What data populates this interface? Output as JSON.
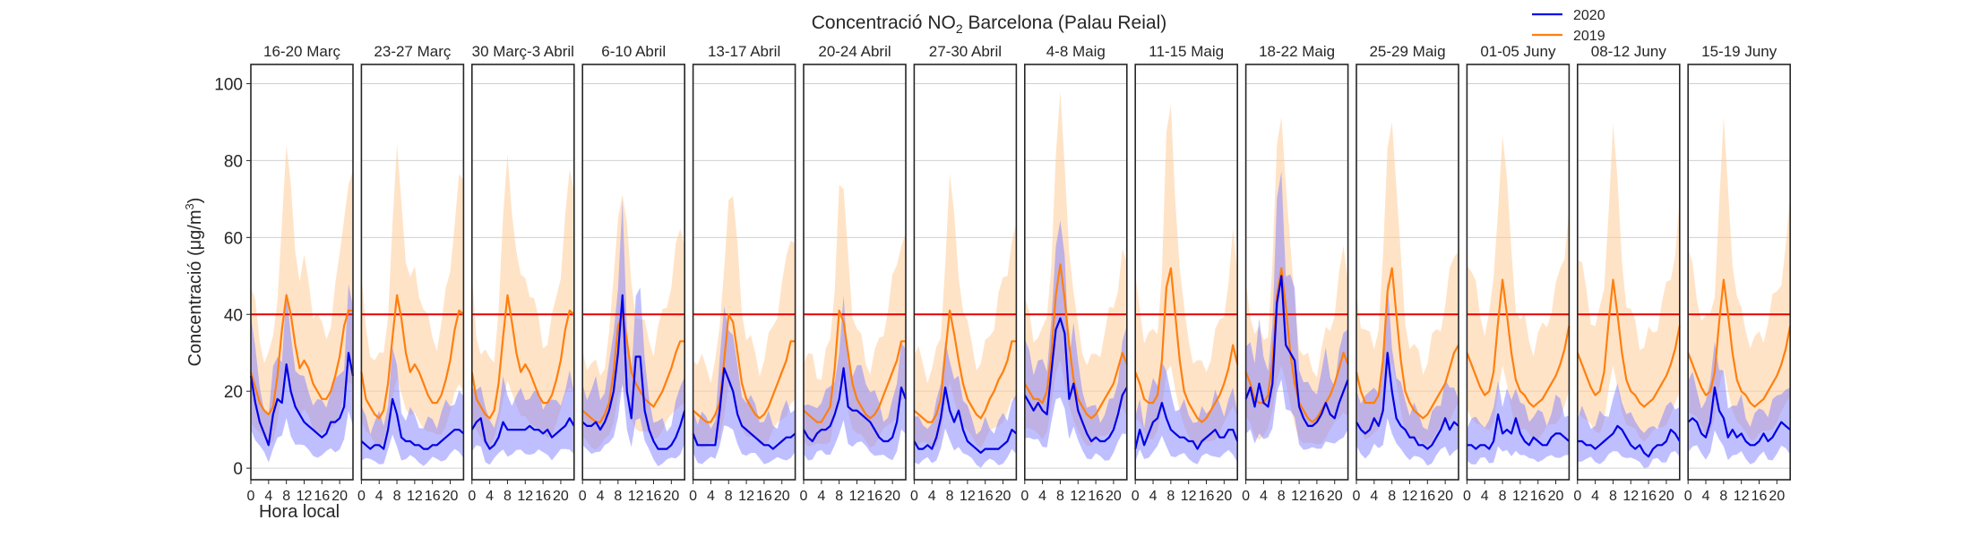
{
  "chart_data": {
    "type": "line",
    "title_main": "Concentració NO",
    "title_sub": "2",
    "title_tail": " Barcelona (Palau Reial)",
    "ylabel_main": "Concentració (μg/m",
    "ylabel_sup": "3",
    "ylabel_tail": ")",
    "xlabel": "Hora local",
    "ylim": [
      -3,
      105
    ],
    "yticks": [
      "0",
      "20",
      "40",
      "60",
      "80",
      "100"
    ],
    "ytick_values": [
      0,
      20,
      40,
      60,
      80,
      100
    ],
    "xticks": [
      "0",
      "4",
      "8",
      "12",
      "16",
      "20"
    ],
    "xtick_values": [
      0,
      4,
      8,
      12,
      16,
      20
    ],
    "xlim": [
      0,
      23
    ],
    "threshold": 40,
    "grid": true,
    "legend_position": "top-right",
    "legend": [
      {
        "name": "2020",
        "color": "#0000e6"
      },
      {
        "name": "2019",
        "color": "#ff7f0e"
      }
    ],
    "panels": [
      {
        "label": "16-20 Març",
        "s2020": [
          24,
          17,
          12,
          9,
          6,
          14,
          18,
          17,
          27,
          20,
          16,
          14,
          12,
          11,
          10,
          9,
          8,
          9,
          12,
          12,
          13,
          16,
          30,
          24
        ],
        "s2019": [
          25,
          21,
          17,
          15,
          14,
          16,
          24,
          36,
          45,
          40,
          32,
          26,
          28,
          26,
          22,
          20,
          18,
          18,
          20,
          24,
          29,
          37,
          41,
          41
        ]
      },
      {
        "label": "23-27 Març",
        "s2020": [
          7,
          6,
          5,
          6,
          6,
          5,
          10,
          18,
          14,
          8,
          7,
          7,
          6,
          6,
          5,
          5,
          6,
          6,
          7,
          8,
          9,
          10,
          10,
          9
        ],
        "s2019": [
          25,
          18,
          16,
          14,
          13,
          15,
          22,
          34,
          45,
          39,
          30,
          25,
          27,
          25,
          22,
          19,
          17,
          17,
          19,
          23,
          28,
          36,
          41,
          40
        ]
      },
      {
        "label": "30 Març-3 Abril",
        "s2020": [
          10,
          12,
          13,
          7,
          5,
          6,
          8,
          12,
          10,
          10,
          10,
          10,
          10,
          11,
          10,
          10,
          9,
          10,
          8,
          9,
          10,
          11,
          13,
          11
        ],
        "s2019": [
          25,
          18,
          16,
          14,
          13,
          15,
          22,
          34,
          45,
          38,
          30,
          25,
          27,
          25,
          22,
          19,
          17,
          17,
          19,
          23,
          28,
          36,
          41,
          40
        ]
      },
      {
        "label": "6-10 Abril",
        "s2020": [
          12,
          11,
          11,
          12,
          10,
          12,
          15,
          20,
          30,
          45,
          20,
          13,
          29,
          29,
          15,
          10,
          7,
          5,
          5,
          5,
          6,
          8,
          11,
          15
        ],
        "s2019": [
          15,
          14,
          13,
          12,
          12,
          14,
          17,
          25,
          37,
          40,
          33,
          25,
          22,
          20,
          18,
          17,
          16,
          18,
          20,
          23,
          26,
          30,
          33,
          33
        ]
      },
      {
        "label": "13-17 Abril",
        "s2020": [
          9,
          6,
          6,
          6,
          6,
          6,
          15,
          26,
          23,
          20,
          14,
          11,
          10,
          9,
          8,
          7,
          6,
          6,
          5,
          6,
          7,
          8,
          8,
          9
        ],
        "s2019": [
          15,
          14,
          13,
          12,
          12,
          14,
          17,
          28,
          40,
          38,
          30,
          22,
          18,
          16,
          14,
          13,
          14,
          16,
          19,
          22,
          25,
          28,
          33,
          33
        ]
      },
      {
        "label": "20-24 Abril",
        "s2020": [
          10,
          8,
          7,
          9,
          10,
          10,
          11,
          14,
          18,
          26,
          16,
          15,
          15,
          14,
          13,
          12,
          10,
          8,
          7,
          7,
          8,
          12,
          21,
          18
        ],
        "s2019": [
          15,
          14,
          13,
          12,
          12,
          14,
          16,
          26,
          41,
          38,
          30,
          22,
          18,
          16,
          14,
          13,
          14,
          16,
          19,
          22,
          25,
          28,
          33,
          33
        ]
      },
      {
        "label": "27-30 Abril",
        "s2020": [
          7,
          5,
          5,
          6,
          5,
          8,
          13,
          21,
          15,
          12,
          15,
          10,
          7,
          6,
          5,
          4,
          5,
          5,
          5,
          5,
          6,
          7,
          10,
          9
        ],
        "s2019": [
          15,
          14,
          13,
          12,
          12,
          14,
          18,
          30,
          41,
          35,
          28,
          22,
          18,
          16,
          14,
          13,
          15,
          18,
          20,
          23,
          25,
          28,
          33,
          33
        ]
      },
      {
        "label": "4-8 Maig",
        "s2020": [
          19,
          17,
          15,
          17,
          15,
          14,
          25,
          36,
          39,
          35,
          18,
          22,
          15,
          12,
          9,
          7,
          8,
          7,
          7,
          8,
          10,
          14,
          19,
          21
        ],
        "s2019": [
          22,
          20,
          18,
          18,
          17,
          20,
          30,
          45,
          53,
          44,
          32,
          23,
          18,
          16,
          14,
          13,
          14,
          16,
          18,
          20,
          22,
          26,
          30,
          27
        ]
      },
      {
        "label": "11-15 Maig",
        "s2020": [
          5,
          10,
          6,
          9,
          12,
          13,
          17,
          13,
          10,
          9,
          8,
          8,
          7,
          7,
          5,
          7,
          8,
          9,
          10,
          8,
          8,
          10,
          10,
          7
        ],
        "s2019": [
          25,
          22,
          18,
          17,
          17,
          19,
          28,
          47,
          52,
          40,
          28,
          20,
          17,
          15,
          13,
          12,
          13,
          15,
          17,
          19,
          22,
          26,
          32,
          27
        ]
      },
      {
        "label": "18-22 Maig",
        "s2020": [
          18,
          21,
          16,
          22,
          17,
          16,
          22,
          43,
          50,
          32,
          30,
          28,
          16,
          13,
          11,
          11,
          12,
          14,
          17,
          14,
          13,
          17,
          20,
          23
        ],
        "s2019": [
          25,
          22,
          18,
          17,
          17,
          19,
          28,
          45,
          52,
          42,
          30,
          22,
          17,
          15,
          13,
          12,
          13,
          15,
          17,
          19,
          22,
          26,
          30,
          27
        ]
      },
      {
        "label": "25-29 Maig",
        "s2020": [
          12,
          10,
          9,
          10,
          13,
          11,
          15,
          30,
          20,
          13,
          11,
          10,
          8,
          8,
          6,
          6,
          5,
          6,
          8,
          10,
          13,
          10,
          12,
          11
        ],
        "s2019": [
          25,
          20,
          17,
          17,
          17,
          19,
          28,
          46,
          52,
          40,
          28,
          20,
          17,
          15,
          14,
          13,
          14,
          16,
          18,
          20,
          22,
          26,
          30,
          32
        ]
      },
      {
        "label": "01-05 Juny",
        "s2020": [
          6,
          6,
          5,
          6,
          6,
          5,
          7,
          14,
          9,
          10,
          9,
          13,
          9,
          7,
          6,
          8,
          7,
          6,
          6,
          8,
          9,
          9,
          8,
          7
        ],
        "s2019": [
          30,
          27,
          24,
          21,
          19,
          20,
          25,
          38,
          49,
          40,
          30,
          23,
          20,
          19,
          17,
          16,
          17,
          18,
          20,
          22,
          24,
          27,
          31,
          37
        ]
      },
      {
        "label": "08-12 Juny",
        "s2020": [
          7,
          7,
          6,
          6,
          5,
          6,
          7,
          8,
          9,
          11,
          10,
          8,
          6,
          5,
          6,
          4,
          3,
          5,
          6,
          6,
          7,
          10,
          9,
          7
        ],
        "s2019": [
          30,
          27,
          24,
          21,
          19,
          20,
          25,
          38,
          49,
          40,
          30,
          23,
          20,
          19,
          17,
          16,
          17,
          18,
          20,
          22,
          24,
          27,
          31,
          37
        ]
      },
      {
        "label": "15-19 Juny",
        "s2020": [
          12,
          13,
          12,
          9,
          8,
          12,
          21,
          15,
          13,
          8,
          10,
          8,
          9,
          7,
          6,
          6,
          7,
          9,
          7,
          8,
          10,
          12,
          11,
          10
        ],
        "s2019": [
          30,
          27,
          24,
          21,
          19,
          20,
          25,
          38,
          49,
          40,
          30,
          23,
          20,
          19,
          17,
          16,
          17,
          18,
          20,
          22,
          24,
          27,
          31,
          37
        ]
      }
    ]
  },
  "colors": {
    "line_2020": "#0000e6",
    "line_2019": "#ff7f0e",
    "band_2020": "#8080ff",
    "band_2019": "#ffcc99",
    "threshold": "#e60000",
    "grid": "#d0d0d0",
    "frame": "#262626"
  }
}
